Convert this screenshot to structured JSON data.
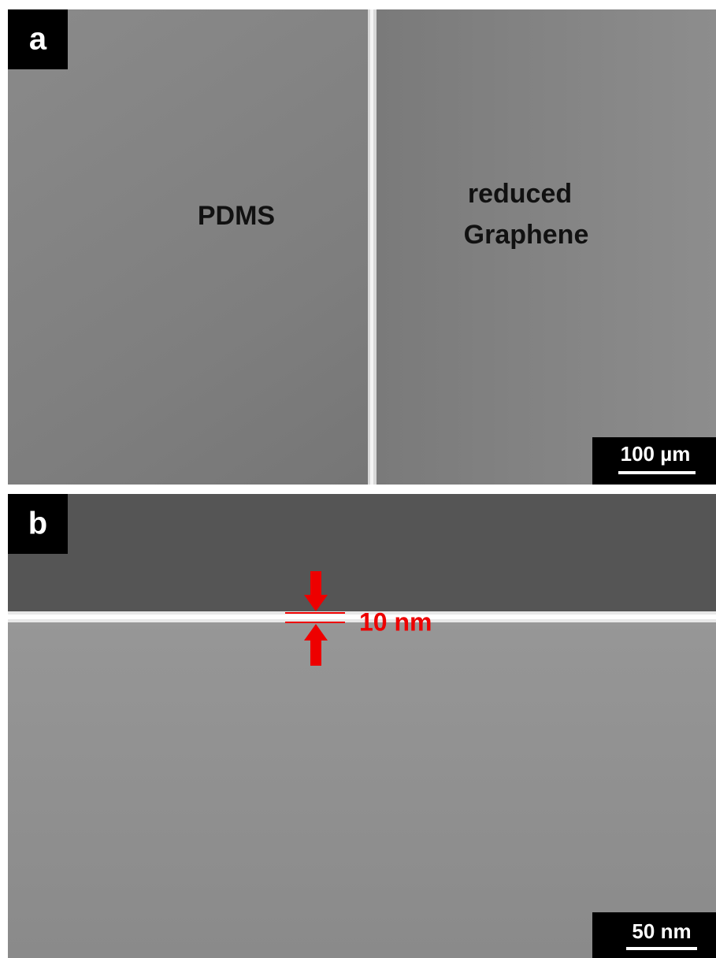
{
  "panels": [
    {
      "label": "a",
      "left_region": "PDMS",
      "right_region": [
        "reduced",
        "Graphene"
      ],
      "scale_bar": "100 µm"
    },
    {
      "label": "b",
      "annotation": "10 nm",
      "scale_bar": "50 nm"
    }
  ]
}
